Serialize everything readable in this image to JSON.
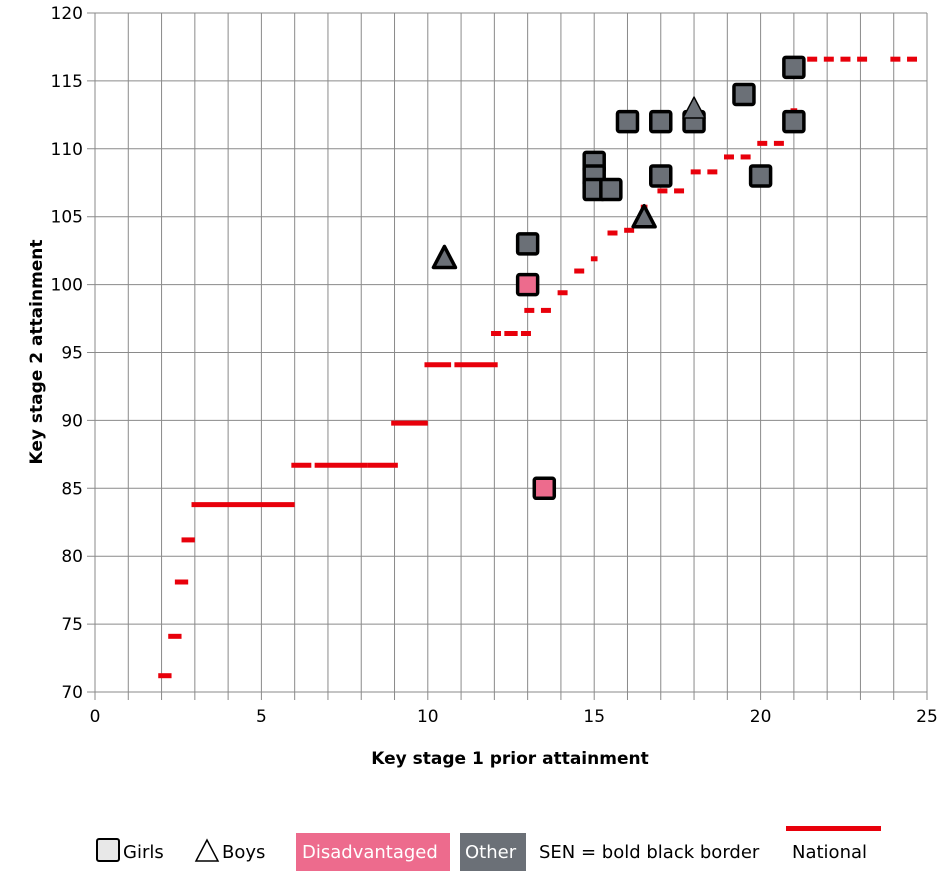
{
  "chart_data": {
    "type": "scatter",
    "xlabel": "Key stage 1 prior attainment",
    "ylabel": "Key stage 2 attainment",
    "xlim": [
      0,
      25
    ],
    "ylim": [
      70,
      120
    ],
    "x_ticks": [
      0,
      5,
      10,
      15,
      20,
      25
    ],
    "y_ticks": [
      70,
      75,
      80,
      85,
      90,
      95,
      100,
      105,
      110,
      115,
      120
    ],
    "x_minor_step": 1,
    "grid": true,
    "national_line": {
      "name": "National",
      "color": "#e8000b",
      "segments": [
        {
          "x1": 1.9,
          "x2": 2.3,
          "y": 71.2
        },
        {
          "x1": 2.2,
          "x2": 2.6,
          "y": 74.1
        },
        {
          "x1": 2.4,
          "x2": 2.8,
          "y": 78.1
        },
        {
          "x1": 2.6,
          "x2": 3.0,
          "y": 81.2
        },
        {
          "x1": 2.9,
          "x2": 6.0,
          "y": 83.8
        },
        {
          "x1": 5.9,
          "x2": 6.5,
          "y": 86.7
        },
        {
          "x1": 6.6,
          "x2": 8.2,
          "y": 86.7
        },
        {
          "x1": 8.2,
          "x2": 9.1,
          "y": 86.7
        },
        {
          "x1": 8.9,
          "x2": 10.0,
          "y": 89.8
        },
        {
          "x1": 9.9,
          "x2": 10.7,
          "y": 94.1
        },
        {
          "x1": 10.8,
          "x2": 12.1,
          "y": 94.1
        },
        {
          "x1": 11.9,
          "x2": 12.2,
          "y": 96.4
        },
        {
          "x1": 12.3,
          "x2": 12.7,
          "y": 96.4
        },
        {
          "x1": 12.8,
          "x2": 13.1,
          "y": 96.4
        },
        {
          "x1": 12.9,
          "x2": 13.2,
          "y": 98.1
        },
        {
          "x1": 13.4,
          "x2": 13.7,
          "y": 98.1
        },
        {
          "x1": 13.9,
          "x2": 14.2,
          "y": 99.4
        },
        {
          "x1": 14.4,
          "x2": 14.7,
          "y": 101.0
        },
        {
          "x1": 14.9,
          "x2": 15.1,
          "y": 101.9
        },
        {
          "x1": 15.4,
          "x2": 15.7,
          "y": 103.8
        },
        {
          "x1": 15.9,
          "x2": 16.2,
          "y": 104.0
        },
        {
          "x1": 16.4,
          "x2": 16.6,
          "y": 105.7
        },
        {
          "x1": 16.9,
          "x2": 17.2,
          "y": 106.9
        },
        {
          "x1": 17.4,
          "x2": 17.7,
          "y": 106.9
        },
        {
          "x1": 17.9,
          "x2": 18.2,
          "y": 108.3
        },
        {
          "x1": 18.4,
          "x2": 18.7,
          "y": 108.3
        },
        {
          "x1": 18.9,
          "x2": 19.2,
          "y": 109.4
        },
        {
          "x1": 19.4,
          "x2": 19.7,
          "y": 109.4
        },
        {
          "x1": 19.9,
          "x2": 20.2,
          "y": 110.4
        },
        {
          "x1": 20.4,
          "x2": 20.7,
          "y": 110.4
        },
        {
          "x1": 20.9,
          "x2": 21.1,
          "y": 112.8
        },
        {
          "x1": 21.4,
          "x2": 21.7,
          "y": 116.6
        },
        {
          "x1": 21.9,
          "x2": 22.2,
          "y": 116.6
        },
        {
          "x1": 22.4,
          "x2": 22.7,
          "y": 116.6
        },
        {
          "x1": 22.9,
          "x2": 23.2,
          "y": 116.6
        },
        {
          "x1": 23.9,
          "x2": 24.2,
          "y": 116.6
        },
        {
          "x1": 24.4,
          "x2": 24.7,
          "y": 116.6
        }
      ]
    },
    "points": [
      {
        "x": 13.0,
        "y": 103.0,
        "gender": "girl",
        "group": "other",
        "sen": true
      },
      {
        "x": 13.0,
        "y": 100.0,
        "gender": "girl",
        "group": "disadvantaged",
        "sen": true
      },
      {
        "x": 13.5,
        "y": 85.0,
        "gender": "girl",
        "group": "disadvantaged",
        "sen": true
      },
      {
        "x": 10.5,
        "y": 102.0,
        "gender": "boy",
        "group": "other",
        "sen": true
      },
      {
        "x": 15.0,
        "y": 109.0,
        "gender": "girl",
        "group": "other",
        "sen": true
      },
      {
        "x": 15.0,
        "y": 108.0,
        "gender": "girl",
        "group": "other",
        "sen": true
      },
      {
        "x": 15.0,
        "y": 107.0,
        "gender": "girl",
        "group": "other",
        "sen": true
      },
      {
        "x": 15.5,
        "y": 107.0,
        "gender": "girl",
        "group": "other",
        "sen": true
      },
      {
        "x": 16.0,
        "y": 112.0,
        "gender": "girl",
        "group": "other",
        "sen": true
      },
      {
        "x": 17.0,
        "y": 112.0,
        "gender": "girl",
        "group": "other",
        "sen": true
      },
      {
        "x": 17.0,
        "y": 108.0,
        "gender": "girl",
        "group": "other",
        "sen": true
      },
      {
        "x": 16.5,
        "y": 105.0,
        "gender": "boy",
        "group": "other",
        "sen": true
      },
      {
        "x": 18.0,
        "y": 112.0,
        "gender": "girl",
        "group": "other",
        "sen": true
      },
      {
        "x": 18.0,
        "y": 113.0,
        "gender": "boy",
        "group": "other",
        "sen": false
      },
      {
        "x": 19.5,
        "y": 114.0,
        "gender": "girl",
        "group": "other",
        "sen": true
      },
      {
        "x": 20.0,
        "y": 108.0,
        "gender": "girl",
        "group": "other",
        "sen": true
      },
      {
        "x": 21.0,
        "y": 116.0,
        "gender": "girl",
        "group": "other",
        "sen": true
      },
      {
        "x": 21.0,
        "y": 112.0,
        "gender": "girl",
        "group": "other",
        "sen": true
      }
    ],
    "colors": {
      "disadvantaged": "#ed6b8d",
      "other": "#6b7077",
      "national": "#e8000b",
      "grid": "#8a8a8a"
    },
    "legend": {
      "placement": "bottom",
      "girls": "Girls",
      "boys": "Boys",
      "disadvantaged": "Disadvantaged",
      "other": "Other",
      "sen_note": "SEN = bold black border",
      "national": "National"
    }
  }
}
